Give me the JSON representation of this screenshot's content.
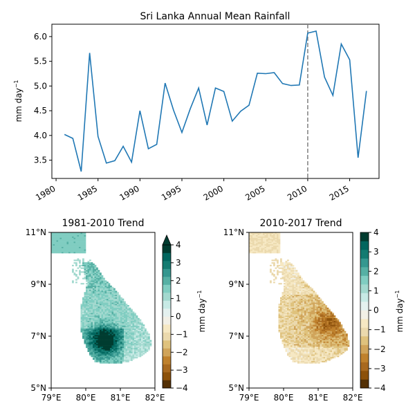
{
  "chart_data": [
    {
      "type": "line",
      "title": "Sri Lanka Annual Mean Rainfall",
      "ylabel_main": "mm day",
      "ylabel_sup": "−1",
      "x": [
        1981,
        1982,
        1983,
        1984,
        1985,
        1986,
        1987,
        1988,
        1989,
        1990,
        1991,
        1992,
        1993,
        1994,
        1995,
        1996,
        1997,
        1998,
        1999,
        2000,
        2001,
        2002,
        2003,
        2004,
        2005,
        2006,
        2007,
        2008,
        2009,
        2010,
        2011,
        2012,
        2013,
        2014,
        2015,
        2016,
        2017
      ],
      "values": [
        4.02,
        3.94,
        3.27,
        5.67,
        3.98,
        3.44,
        3.49,
        3.78,
        3.46,
        4.5,
        3.73,
        3.82,
        5.06,
        4.51,
        4.06,
        4.54,
        4.96,
        4.21,
        4.96,
        4.89,
        4.29,
        4.49,
        4.61,
        5.26,
        5.25,
        5.27,
        5.05,
        5.01,
        5.02,
        6.07,
        6.11,
        5.18,
        4.81,
        5.85,
        5.53,
        3.55,
        4.9
      ],
      "xlim": [
        1979.5,
        2018.5
      ],
      "ylim": [
        3.13,
        6.25
      ],
      "xticks": [
        1980,
        1985,
        1990,
        1995,
        2000,
        2005,
        2010,
        2015
      ],
      "xtick_labels": [
        "1980",
        "1985",
        "1990",
        "1995",
        "2000",
        "2005",
        "2010",
        "2015"
      ],
      "yticks": [
        3.5,
        4.0,
        4.5,
        5.0,
        5.5,
        6.0
      ],
      "ytick_labels": [
        "3.5",
        "4.0",
        "4.5",
        "5.0",
        "5.5",
        "6.0"
      ],
      "vline_x": 2010,
      "line_color": "#1f77b4",
      "vline_color": "#7f7f7f"
    },
    {
      "type": "heatmap",
      "title": "1981-2010 Trend",
      "trend_sign": 1,
      "xlim": [
        79,
        82
      ],
      "ylim": [
        5,
        11
      ],
      "xtick_labels": [
        "79°E",
        "80°E",
        "81°E",
        "82°E"
      ],
      "ytick_labels": [
        "5°N",
        "7°N",
        "9°N",
        "11°N"
      ],
      "colorbar": {
        "label_main": "mm day",
        "label_sup": "−1",
        "ticks": [
          -4,
          -3,
          -2,
          -1,
          0,
          1,
          2,
          3,
          4
        ],
        "tick_labels": [
          "−4",
          "−3",
          "−2",
          "−1",
          "0",
          "1",
          "2",
          "3",
          "4"
        ],
        "extend": "max"
      }
    },
    {
      "type": "heatmap",
      "title": "2010-2017 Trend",
      "trend_sign": -1,
      "xlim": [
        79,
        82
      ],
      "ylim": [
        5,
        11
      ],
      "xtick_labels": [
        "79°E",
        "80°E",
        "81°E",
        "82°E"
      ],
      "ytick_labels": [
        "5°N",
        "7°N",
        "9°N",
        "11°N"
      ],
      "colorbar": {
        "label_main": "mm day",
        "label_sup": "−1",
        "ticks": [
          -4,
          -3,
          -2,
          -1,
          0,
          1,
          2,
          3,
          4
        ],
        "tick_labels": [
          "−4",
          "−3",
          "−2",
          "−1",
          "0",
          "1",
          "2",
          "3",
          "4"
        ],
        "extend": "none"
      }
    }
  ],
  "colormap": [
    "#543005",
    "#8c510a",
    "#a8691f",
    "#bf812d",
    "#d0a45a",
    "#dfc27d",
    "#ebd9ad",
    "#f6e8c3",
    "#f2f0e6",
    "#e4f1ef",
    "#c7eae5",
    "#a3d9cf",
    "#80cdc1",
    "#56b0a4",
    "#35978f",
    "#147b71",
    "#01665e",
    "#003c30"
  ]
}
